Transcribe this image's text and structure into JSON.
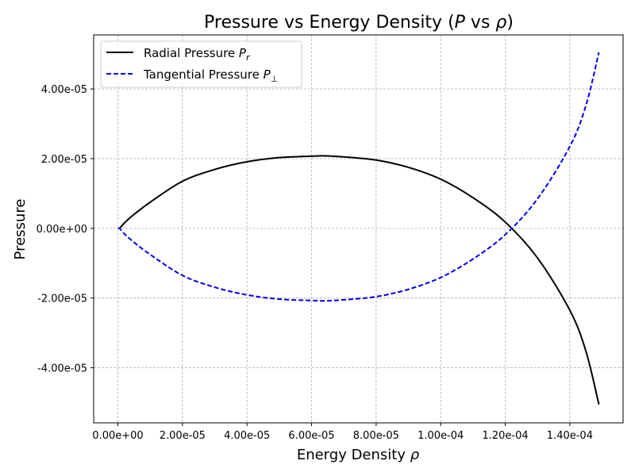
{
  "chart_data": {
    "type": "line",
    "title": "Pressure vs Energy Density (P vs ρ)",
    "title_parts": [
      "Pressure vs Energy Density (",
      "P",
      " vs ",
      "ρ",
      ")"
    ],
    "xlabel": "Energy Density ρ",
    "xlabel_parts": [
      "Energy Density ",
      "ρ"
    ],
    "ylabel": "Pressure",
    "xlim": [
      -7.5e-06,
      0.0001565
    ],
    "ylim": [
      -5.58e-05,
      5.55e-05
    ],
    "xticks": [
      0,
      2e-05,
      4e-05,
      6e-05,
      8e-05,
      0.0001,
      0.00012,
      0.00014
    ],
    "xtick_labels": [
      "0.00e+00",
      "2.00e-05",
      "4.00e-05",
      "6.00e-05",
      "8.00e-05",
      "1.00e-04",
      "1.20e-04",
      "1.40e-04"
    ],
    "yticks": [
      -4e-05,
      -2e-05,
      0,
      2e-05,
      4e-05
    ],
    "ytick_labels": [
      "-4.00e-05",
      "-2.00e-05",
      "0.00e+00",
      "2.00e-05",
      "4.00e-05"
    ],
    "grid": true,
    "legend_position": "top-left",
    "series": [
      {
        "name": "Radial Pressure P_r",
        "name_parts": [
          "Radial Pressure ",
          "P",
          "r"
        ],
        "color": "#000000",
        "style": "solid",
        "x": [
          5e-07,
          1e-06,
          2.5e-06,
          5e-06,
          1e-05,
          2e-05,
          3e-05,
          4e-05,
          5e-05,
          6e-05,
          6.4e-05,
          7e-05,
          8e-05,
          9e-05,
          0.0001,
          0.00011,
          0.00012,
          0.00013,
          0.00014,
          0.000145,
          0.000149
        ],
        "y": [
          0,
          5e-07,
          2e-06,
          4e-06,
          7.5e-06,
          1.35e-05,
          1.69e-05,
          1.91e-05,
          2.03e-05,
          2.07e-05,
          2.08e-05,
          2.05e-05,
          1.96e-05,
          1.75e-05,
          1.41e-05,
          8.8e-06,
          1.8e-06,
          -8.5e-06,
          -2.35e-05,
          -3.53e-05,
          -5.05e-05
        ]
      },
      {
        "name": "Tangential Pressure P_⊥",
        "name_parts": [
          "Tangential Pressure ",
          "P",
          "⊥"
        ],
        "color": "#0000ee",
        "style": "dashed",
        "x": [
          0,
          5e-07,
          1e-06,
          2.5e-06,
          5e-06,
          1e-05,
          2e-05,
          3e-05,
          4e-05,
          5e-05,
          6e-05,
          6.4e-05,
          7e-05,
          8e-05,
          9e-05,
          0.0001,
          0.00011,
          0.00012,
          0.00013,
          0.00014,
          0.000145,
          0.000149
        ],
        "y": [
          0,
          0,
          -5e-07,
          -2e-06,
          -4e-06,
          -7.5e-06,
          -1.35e-05,
          -1.69e-05,
          -1.91e-05,
          -2.03e-05,
          -2.07e-05,
          -2.08e-05,
          -2.05e-05,
          -1.96e-05,
          -1.75e-05,
          -1.41e-05,
          -8.8e-06,
          -1.8e-06,
          8.5e-06,
          2.35e-05,
          3.53e-05,
          5.05e-05
        ]
      }
    ]
  }
}
